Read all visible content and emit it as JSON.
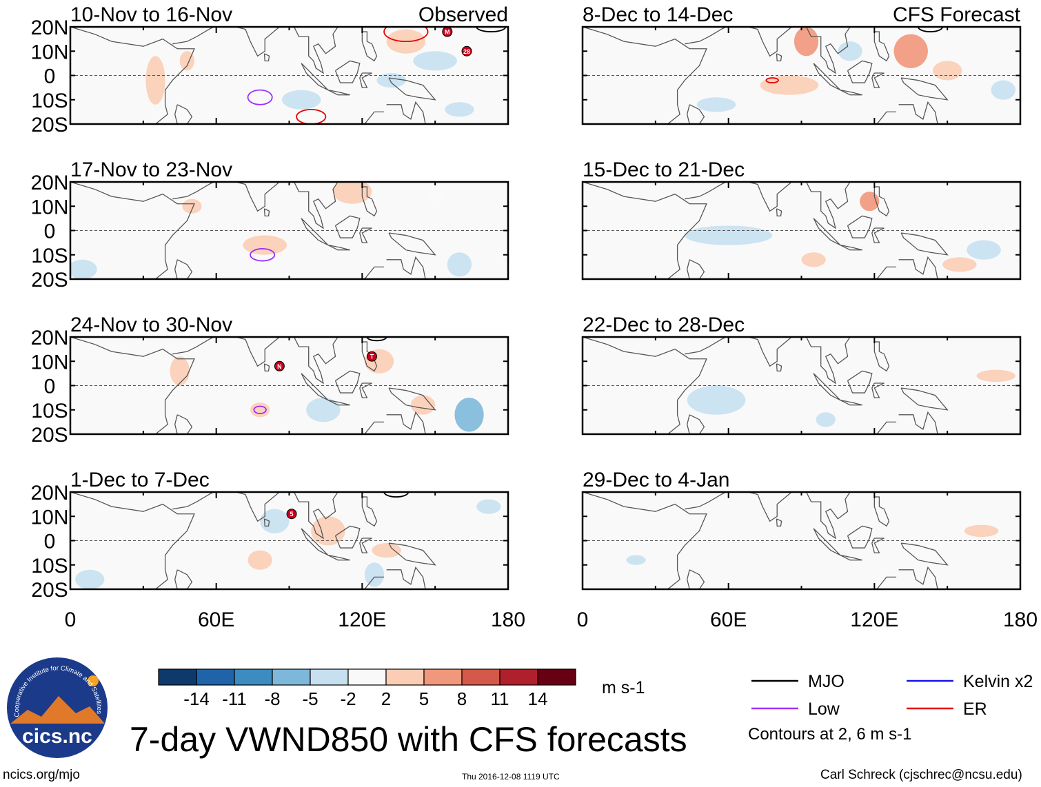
{
  "figure_title": "7-day VWND850 with CFS forecasts",
  "footer": {
    "website": "ncics.org/mjo",
    "timestamp": "Thu 2016-12-08 1119 UTC",
    "author": "Carl Schreck (cjschrec@ncsu.edu)"
  },
  "logo": {
    "text": "cics.nc",
    "ring_text": "Cooperative Institute for Climate and Satellites"
  },
  "chart_data": {
    "type": "heatmap",
    "variable": "VWND850",
    "units": "m s-1",
    "x_range": [
      0,
      180
    ],
    "y_range": [
      -20,
      20
    ],
    "x_ticks": [
      "0",
      "60E",
      "120E",
      "180"
    ],
    "x_tick_values": [
      0,
      60,
      120,
      180
    ],
    "y_ticks": [
      "20N",
      "10N",
      "0",
      "10S",
      "20S"
    ],
    "y_tick_values": [
      20,
      10,
      0,
      -10,
      -20
    ],
    "column_labels": {
      "observed": "Observed",
      "forecast": "CFS Forecast"
    },
    "panels": [
      {
        "title": "10-Nov to 16-Nov",
        "type": "observed",
        "shading": [
          {
            "lon": 138,
            "lat": 14,
            "rx": 8,
            "ry": 5,
            "value": 4
          },
          {
            "lon": 150,
            "lat": 6,
            "rx": 9,
            "ry": 4,
            "value": -3
          },
          {
            "lon": 132,
            "lat": -2,
            "rx": 6,
            "ry": 3,
            "value": -3
          },
          {
            "lon": 95,
            "lat": -10,
            "rx": 8,
            "ry": 4,
            "value": -3
          },
          {
            "lon": 160,
            "lat": -14,
            "rx": 6,
            "ry": 3,
            "value": -3
          },
          {
            "lon": 35,
            "lat": -2,
            "rx": 4,
            "ry": 10,
            "value": 3
          },
          {
            "lon": 48,
            "lat": 6,
            "rx": 3,
            "ry": 4,
            "value": 3
          }
        ],
        "contours": [
          {
            "kind": "Low",
            "lon": 78,
            "lat": -9,
            "rx": 5,
            "ry": 3
          },
          {
            "kind": "ER",
            "lon": 138,
            "lat": 18,
            "rx": 9,
            "ry": 4
          },
          {
            "kind": "ER",
            "lon": 99,
            "lat": -17,
            "rx": 6,
            "ry": 3
          },
          {
            "kind": "MJO",
            "lon": 173,
            "lat": 20,
            "rx": 6,
            "ry": 2
          }
        ],
        "storms": [
          {
            "id": "M",
            "lon": 155,
            "lat": 18
          },
          {
            "id": "28",
            "lon": 163,
            "lat": 10
          }
        ]
      },
      {
        "title": "17-Nov to 23-Nov",
        "type": "observed",
        "shading": [
          {
            "lon": 116,
            "lat": 16,
            "rx": 8,
            "ry": 5,
            "value": 5
          },
          {
            "lon": 80,
            "lat": -6,
            "rx": 9,
            "ry": 4,
            "value": 3
          },
          {
            "lon": 160,
            "lat": -14,
            "rx": 5,
            "ry": 5,
            "value": -4
          },
          {
            "lon": 5,
            "lat": -16,
            "rx": 6,
            "ry": 4,
            "value": -3
          },
          {
            "lon": 50,
            "lat": 10,
            "rx": 4,
            "ry": 3,
            "value": 3
          },
          {
            "lon": 150,
            "lat": 14,
            "rx": 4,
            "ry": 2,
            "value": 2
          }
        ],
        "contours": [
          {
            "kind": "Low",
            "lon": 79,
            "lat": -10,
            "rx": 5,
            "ry": 2.5
          }
        ],
        "storms": []
      },
      {
        "title": "24-Nov to 30-Nov",
        "type": "observed",
        "shading": [
          {
            "lon": 164,
            "lat": -12,
            "rx": 6,
            "ry": 7,
            "value": -6
          },
          {
            "lon": 104,
            "lat": -10,
            "rx": 7,
            "ry": 5,
            "value": -4
          },
          {
            "lon": 127,
            "lat": 10,
            "rx": 6,
            "ry": 5,
            "value": 4
          },
          {
            "lon": 145,
            "lat": -8,
            "rx": 5,
            "ry": 4,
            "value": 3
          },
          {
            "lon": 45,
            "lat": 6,
            "rx": 4,
            "ry": 6,
            "value": 4
          },
          {
            "lon": 78,
            "lat": -10,
            "rx": 4,
            "ry": 3,
            "value": 3
          }
        ],
        "contours": [
          {
            "kind": "Low",
            "lon": 78,
            "lat": -10,
            "rx": 2.5,
            "ry": 1.5
          },
          {
            "kind": "MJO",
            "lon": 126,
            "lat": 20,
            "rx": 4,
            "ry": 1.5
          }
        ],
        "storms": [
          {
            "id": "N",
            "lon": 86,
            "lat": 8
          },
          {
            "id": "T",
            "lon": 124,
            "lat": 12
          }
        ]
      },
      {
        "title": "1-Dec to 7-Dec",
        "type": "observed",
        "shading": [
          {
            "lon": 106,
            "lat": 4,
            "rx": 7,
            "ry": 6,
            "value": 4
          },
          {
            "lon": 84,
            "lat": 8,
            "rx": 6,
            "ry": 5,
            "value": -4
          },
          {
            "lon": 130,
            "lat": -4,
            "rx": 6,
            "ry": 3,
            "value": 3
          },
          {
            "lon": 172,
            "lat": 14,
            "rx": 5,
            "ry": 3,
            "value": -3
          },
          {
            "lon": 8,
            "lat": -16,
            "rx": 6,
            "ry": 4,
            "value": -3
          },
          {
            "lon": 78,
            "lat": -8,
            "rx": 5,
            "ry": 4,
            "value": 3
          },
          {
            "lon": 125,
            "lat": -14,
            "rx": 4,
            "ry": 5,
            "value": -3
          }
        ],
        "contours": [
          {
            "kind": "MJO",
            "lon": 134,
            "lat": 20,
            "rx": 5,
            "ry": 2
          }
        ],
        "storms": [
          {
            "id": "5",
            "lon": 91,
            "lat": 11
          }
        ]
      },
      {
        "title": "8-Dec to 14-Dec",
        "type": "forecast",
        "shading": [
          {
            "lon": 92,
            "lat": 14,
            "rx": 5,
            "ry": 6,
            "value": 8
          },
          {
            "lon": 135,
            "lat": 10,
            "rx": 7,
            "ry": 7,
            "value": 6
          },
          {
            "lon": 85,
            "lat": -4,
            "rx": 12,
            "ry": 4,
            "value": 4
          },
          {
            "lon": 150,
            "lat": 2,
            "rx": 6,
            "ry": 4,
            "value": 3
          },
          {
            "lon": 110,
            "lat": 10,
            "rx": 5,
            "ry": 4,
            "value": -3
          },
          {
            "lon": 173,
            "lat": -6,
            "rx": 5,
            "ry": 4,
            "value": -3
          },
          {
            "lon": 55,
            "lat": -12,
            "rx": 8,
            "ry": 3,
            "value": -3
          }
        ],
        "contours": [
          {
            "kind": "ER",
            "lon": 78,
            "lat": -2,
            "rx": 2.5,
            "ry": 1
          },
          {
            "kind": "MJO",
            "lon": 143,
            "lat": 20,
            "rx": 5,
            "ry": 2
          }
        ],
        "storms": []
      },
      {
        "title": "15-Dec to 21-Dec",
        "type": "forecast",
        "shading": [
          {
            "lon": 60,
            "lat": -2,
            "rx": 18,
            "ry": 4,
            "value": -3
          },
          {
            "lon": 118,
            "lat": 12,
            "rx": 4,
            "ry": 4,
            "value": 6
          },
          {
            "lon": 165,
            "lat": -8,
            "rx": 7,
            "ry": 4,
            "value": -3
          },
          {
            "lon": 155,
            "lat": -14,
            "rx": 7,
            "ry": 3,
            "value": 3
          },
          {
            "lon": 95,
            "lat": -12,
            "rx": 5,
            "ry": 3,
            "value": 3
          }
        ],
        "contours": [],
        "storms": []
      },
      {
        "title": "22-Dec to 28-Dec",
        "type": "forecast",
        "shading": [
          {
            "lon": 170,
            "lat": 4,
            "rx": 8,
            "ry": 2.5,
            "value": 3
          },
          {
            "lon": 55,
            "lat": -6,
            "rx": 12,
            "ry": 6,
            "value": -3
          },
          {
            "lon": 100,
            "lat": -14,
            "rx": 4,
            "ry": 3,
            "value": -3
          }
        ],
        "contours": [],
        "storms": []
      },
      {
        "title": "29-Dec to 4-Jan",
        "type": "forecast",
        "shading": [
          {
            "lon": 164,
            "lat": 4,
            "rx": 7,
            "ry": 2.5,
            "value": 3
          },
          {
            "lon": 22,
            "lat": -8,
            "rx": 4,
            "ry": 2,
            "value": -3
          }
        ],
        "contours": [],
        "storms": []
      }
    ],
    "colorbar": {
      "labels": [
        "-14",
        "-11",
        "-8",
        "-5",
        "-2",
        "2",
        "5",
        "8",
        "11",
        "14"
      ],
      "colors": [
        "#0d3a6b",
        "#1f64a8",
        "#3c8cc2",
        "#7db8da",
        "#c6e0ef",
        "#f9f9f9",
        "#fbcdb5",
        "#f1977b",
        "#d4594a",
        "#b01f2c",
        "#680014"
      ],
      "units": "m s-1"
    },
    "legend": [
      {
        "name": "MJO",
        "color": "#000000"
      },
      {
        "name": "Kelvin x2",
        "color": "#1414e6"
      },
      {
        "name": "Low",
        "color": "#9b30ff"
      },
      {
        "name": "ER",
        "color": "#e60000"
      }
    ],
    "contour_note": "Contours at 2, 6 m s-1"
  }
}
